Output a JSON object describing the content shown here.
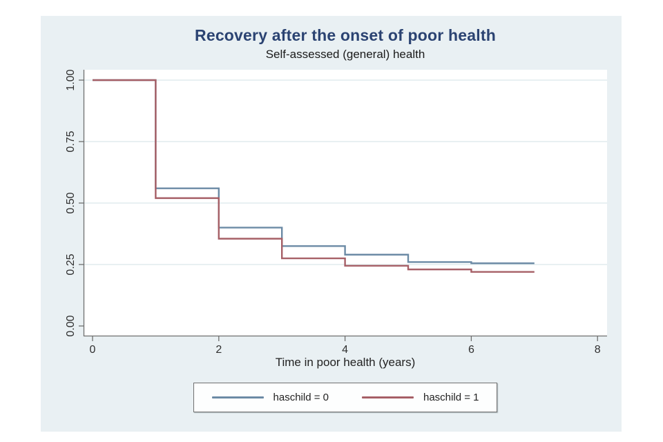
{
  "chart_data": {
    "type": "line",
    "variant": "kaplan-meier-step",
    "title": "Recovery after the onset of poor health",
    "subtitle": "Self-assessed (general) health",
    "xlabel": "Time in poor health (years)",
    "ylabel": "",
    "xlim": [
      0,
      8
    ],
    "ylim": [
      0,
      1
    ],
    "xticks": [
      0,
      2,
      4,
      6,
      8
    ],
    "xtick_labels": [
      "0",
      "2",
      "4",
      "6",
      "8"
    ],
    "yticks": [
      0,
      0.25,
      0.5,
      0.75,
      1
    ],
    "ytick_labels": [
      "0.00",
      "0.25",
      "0.50",
      "0.75",
      "1.00"
    ],
    "grid": true,
    "gridline_values": [
      0.25,
      0.5,
      0.75,
      1.0
    ],
    "legend_position": "bottom",
    "step_times": [
      0,
      1,
      2,
      3,
      4,
      5,
      6,
      7
    ],
    "series": [
      {
        "name": "haschild = 0",
        "color": "#6b8aa5",
        "values": [
          1.0,
          0.56,
          0.4,
          0.325,
          0.29,
          0.26,
          0.255
        ]
      },
      {
        "name": "haschild = 1",
        "color": "#a65f66",
        "values": [
          1.0,
          0.52,
          0.355,
          0.275,
          0.245,
          0.23,
          0.22
        ]
      }
    ],
    "colors": {
      "region_bg": "#e9f0f3",
      "plot_bg": "#ffffff",
      "grid": "#e0eced",
      "axis": "#6e6e6e",
      "tick_text": "#2f2f2f",
      "title": "#2b4372"
    }
  },
  "legend": {
    "entries": [
      {
        "label": "haschild = 0"
      },
      {
        "label": "haschild = 1"
      }
    ]
  }
}
